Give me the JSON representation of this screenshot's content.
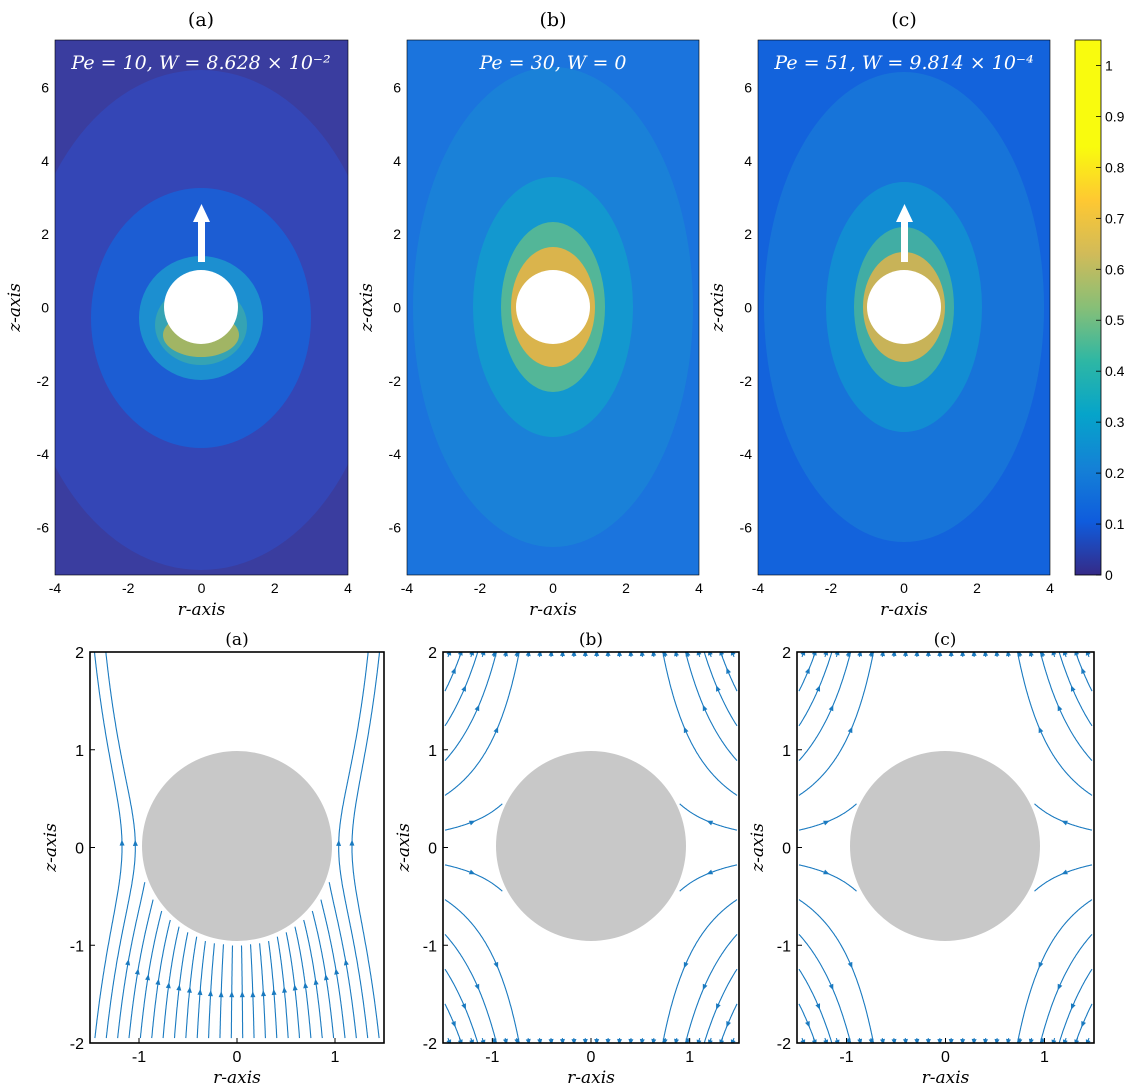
{
  "chart_data": [
    {
      "type": "heatmap",
      "panel": "(a)",
      "annotation": "Pe = 10, W = 8.628 × 10⁻²",
      "xlabel": "r-axis",
      "ylabel": "z-axis",
      "xlim": [
        -4,
        4
      ],
      "ylim": [
        -7.3,
        7.3
      ],
      "xticks": [
        -4,
        -2,
        0,
        2,
        4
      ],
      "yticks": [
        -6,
        -4,
        -2,
        0,
        2,
        4,
        6
      ],
      "colormap": "parula",
      "background_level": 0.06,
      "peak_level": 0.78,
      "peak_location": "bottom of sphere",
      "obstacle": {
        "shape": "circle",
        "center": [
          0,
          0
        ],
        "radius": 1,
        "color": "#ffffff"
      },
      "arrow": {
        "direction": "up",
        "from_z": 1.3,
        "to_z": 2.8,
        "color": "#ffffff"
      }
    },
    {
      "type": "heatmap",
      "panel": "(b)",
      "annotation": "Pe = 30, W = 0",
      "xlabel": "r-axis",
      "ylabel": "z-axis",
      "xlim": [
        -4,
        4
      ],
      "ylim": [
        -7.3,
        7.3
      ],
      "xticks": [
        -4,
        -2,
        0,
        2,
        4
      ],
      "yticks": [
        -6,
        -4,
        -2,
        0,
        2,
        4,
        6
      ],
      "colormap": "parula",
      "background_level": 0.2,
      "peak_level": 0.85,
      "peak_location": "top and bottom of sphere",
      "obstacle": {
        "shape": "circle",
        "center": [
          0,
          0
        ],
        "radius": 1,
        "color": "#ffffff"
      }
    },
    {
      "type": "heatmap",
      "panel": "(c)",
      "annotation": "Pe = 51, W = 9.814 × 10⁻⁴",
      "xlabel": "r-axis",
      "ylabel": "z-axis",
      "xlim": [
        -4,
        4
      ],
      "ylim": [
        -7.3,
        7.3
      ],
      "xticks": [
        -4,
        -2,
        0,
        2,
        4
      ],
      "yticks": [
        -6,
        -4,
        -2,
        0,
        2,
        4,
        6
      ],
      "colormap": "parula",
      "background_level": 0.17,
      "peak_level": 0.8,
      "peak_location": "top and bottom of sphere",
      "obstacle": {
        "shape": "circle",
        "center": [
          0,
          0
        ],
        "radius": 1,
        "color": "#ffffff"
      },
      "arrow": {
        "direction": "up",
        "from_z": 1.3,
        "to_z": 2.8,
        "color": "#ffffff"
      }
    },
    {
      "type": "colorbar",
      "colormap": "parula",
      "range": [
        0,
        1.05
      ],
      "ticks": [
        0,
        0.1,
        0.2,
        0.3,
        0.4,
        0.5,
        0.6,
        0.7,
        0.8,
        0.9,
        1
      ]
    },
    {
      "type": "streamplot",
      "panel": "(a)",
      "xlabel": "r-axis",
      "ylabel": "z-axis",
      "xlim": [
        -1.5,
        1.5
      ],
      "ylim": [
        -2,
        2
      ],
      "xticks": [
        -1,
        0,
        1
      ],
      "yticks": [
        -2,
        -1,
        0,
        1,
        2
      ],
      "line_color": "#1a7ac0",
      "obstacle": {
        "shape": "circle",
        "center": [
          0,
          0
        ],
        "radius": 1,
        "color": "#c8c8c8"
      },
      "flow": "fountain"
    },
    {
      "type": "streamplot",
      "panel": "(b)",
      "xlabel": "r-axis",
      "ylabel": "z-axis",
      "xlim": [
        -1.5,
        1.5
      ],
      "ylim": [
        -2,
        2
      ],
      "xticks": [
        -1,
        0,
        1
      ],
      "yticks": [
        -2,
        -1,
        0,
        1,
        2
      ],
      "line_color": "#1a7ac0",
      "obstacle": {
        "shape": "circle",
        "center": [
          0,
          0
        ],
        "radius": 1,
        "color": "#c8c8c8"
      },
      "flow": "quadrupole"
    },
    {
      "type": "streamplot",
      "panel": "(c)",
      "xlabel": "r-axis",
      "ylabel": "z-axis",
      "xlim": [
        -1.5,
        1.5
      ],
      "ylim": [
        -2,
        2
      ],
      "xticks": [
        -1,
        0,
        1
      ],
      "yticks": [
        -2,
        -1,
        0,
        1,
        2
      ],
      "line_color": "#1a7ac0",
      "obstacle": {
        "shape": "circle",
        "center": [
          0,
          0
        ],
        "radius": 1,
        "color": "#c8c8c8"
      },
      "flow": "quadrupole"
    }
  ]
}
